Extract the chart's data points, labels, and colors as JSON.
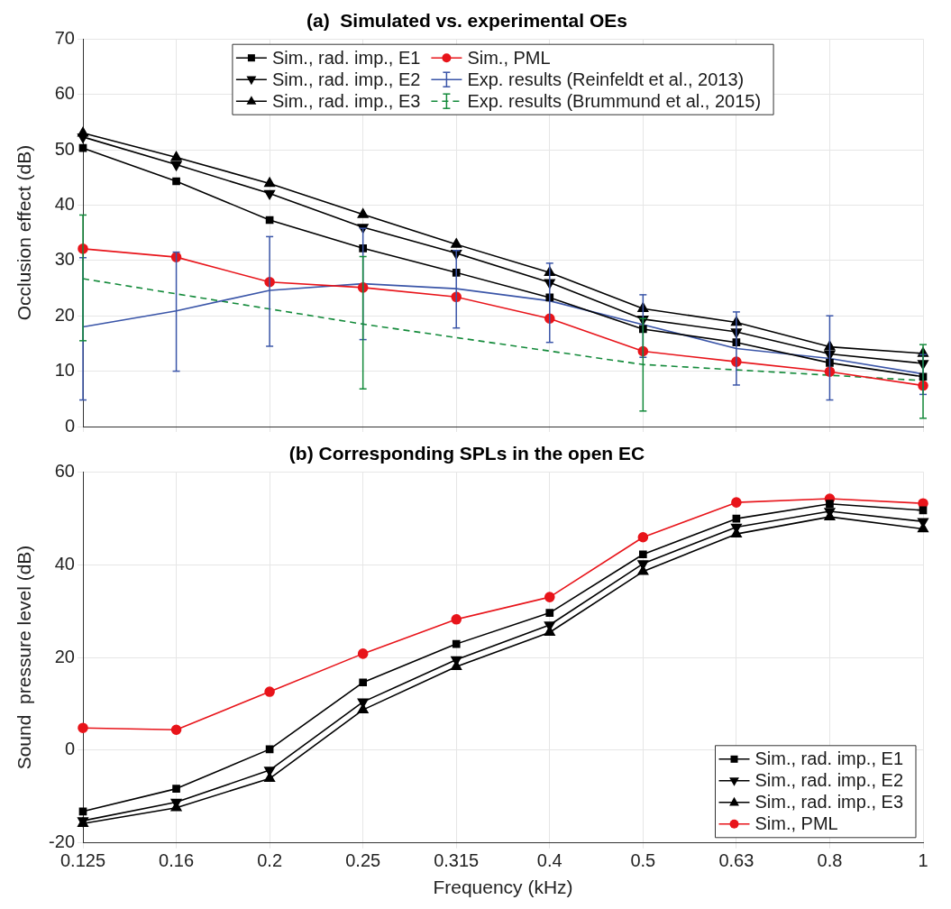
{
  "chart_data": [
    {
      "type": "line",
      "title": "(a)  Simulated vs. experimental OEs",
      "ylabel": "Occlusion effect (dB)",
      "categories": [
        "0.125",
        "0.16",
        "0.2",
        "0.25",
        "0.315",
        "0.4",
        "0.5",
        "0.63",
        "0.8",
        "1"
      ],
      "ylim": [
        0,
        70
      ],
      "yticks": [
        0,
        10,
        20,
        30,
        40,
        50,
        60,
        70
      ],
      "grid": true,
      "legend": "top",
      "tick_labels": "y",
      "series": [
        {
          "name": "Sim., rad. imp., E1",
          "color": "#000000",
          "marker": "square",
          "values": [
            50.3,
            44.3,
            37.3,
            32.2,
            27.8,
            23.3,
            17.6,
            15.2,
            11.5,
            9.0
          ]
        },
        {
          "name": "Sim., PML",
          "color": "#e8141a",
          "marker": "circle",
          "values": [
            32.1,
            30.6,
            26.1,
            25.1,
            23.4,
            19.5,
            13.6,
            11.7,
            9.9,
            7.4
          ]
        },
        {
          "name": "Sim., rad. imp., E2",
          "color": "#000000",
          "marker": "triangle-down",
          "values": [
            52.3,
            47.3,
            42.1,
            36.0,
            31.3,
            26.0,
            19.4,
            17.1,
            13.1,
            11.4
          ]
        },
        {
          "name": "Exp. results (Reinfeldt et al., 2013)",
          "color": "#3a55a8",
          "marker": "none",
          "values": [
            18.0,
            20.9,
            24.6,
            25.8,
            24.9,
            22.7,
            18.4,
            14.1,
            12.3,
            9.5
          ],
          "errors": [
            [
              4.8,
              30.5
            ],
            [
              10.0,
              31.5
            ],
            [
              14.5,
              34.3
            ],
            [
              15.7,
              35.8
            ],
            [
              17.8,
              31.8
            ],
            [
              15.2,
              29.5
            ],
            [
              12.5,
              23.8
            ],
            [
              7.5,
              20.7
            ],
            [
              4.8,
              20.0
            ],
            [
              5.8,
              13.0
            ]
          ]
        },
        {
          "name": "Sim., rad. imp., E3",
          "color": "#000000",
          "marker": "triangle",
          "values": [
            53.0,
            48.6,
            43.9,
            38.3,
            32.9,
            27.8,
            21.3,
            18.8,
            14.4,
            13.2
          ]
        },
        {
          "name": "Exp. results (Brummund et al., 2015)",
          "color": "#138a3a",
          "marker": "none",
          "line_style": "dashed",
          "values": [
            26.7,
            null,
            null,
            18.5,
            null,
            null,
            11.2,
            null,
            null,
            8.3
          ],
          "errors": [
            [
              15.5,
              38.2
            ],
            null,
            null,
            [
              6.8,
              30.7
            ],
            null,
            null,
            [
              2.8,
              19.5
            ],
            null,
            null,
            [
              1.5,
              14.8
            ]
          ]
        }
      ]
    },
    {
      "type": "line",
      "title": "(b) Corresponding SPLs in the open EC",
      "xlabel": "Frequency (kHz)",
      "ylabel": "Sound  pressure level (dB)",
      "categories": [
        "0.125",
        "0.16",
        "0.2",
        "0.25",
        "0.315",
        "0.4",
        "0.5",
        "0.63",
        "0.8",
        "1"
      ],
      "ylim": [
        -20,
        60
      ],
      "yticks": [
        -20,
        0,
        20,
        40,
        60
      ],
      "grid": true,
      "legend": "bottom right",
      "series": [
        {
          "name": "Sim., rad. imp., E1",
          "color": "#000000",
          "marker": "square",
          "values": [
            -13.2,
            -8.3,
            0.2,
            14.6,
            22.9,
            29.6,
            42.2,
            49.9,
            53.1,
            51.7
          ]
        },
        {
          "name": "Sim., rad. imp., E2",
          "color": "#000000",
          "marker": "triangle-down",
          "values": [
            -15.2,
            -11.2,
            -4.3,
            10.4,
            19.5,
            27.0,
            40.2,
            48.1,
            51.5,
            49.3
          ]
        },
        {
          "name": "Sim., rad. imp., E3",
          "color": "#000000",
          "marker": "triangle",
          "values": [
            -15.8,
            -12.4,
            -6.1,
            8.7,
            18.0,
            25.4,
            38.5,
            46.6,
            50.3,
            47.7
          ]
        },
        {
          "name": "Sim., PML",
          "color": "#e8141a",
          "marker": "circle",
          "values": [
            4.8,
            4.4,
            12.6,
            20.8,
            28.2,
            33.0,
            45.9,
            53.4,
            54.2,
            53.2
          ]
        }
      ]
    }
  ]
}
